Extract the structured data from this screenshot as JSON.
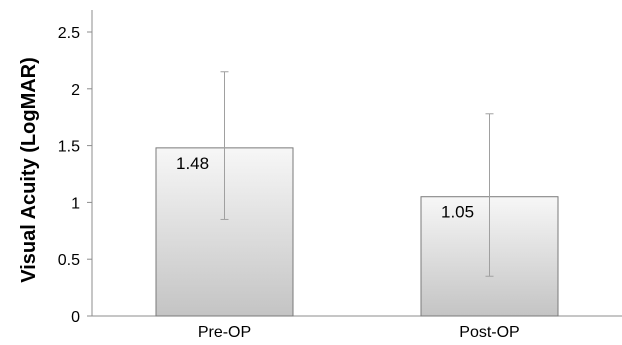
{
  "chart_data": {
    "type": "bar",
    "ylabel": "Visual Acuity (LogMAR)",
    "xlabel": "",
    "ylim": [
      0,
      2.5
    ],
    "yticks": [
      "0",
      "0.5",
      "1",
      "1.5",
      "2",
      "2.5"
    ],
    "grid": false,
    "categories": [
      "Pre-OP",
      "Post-OP"
    ],
    "values": [
      1.48,
      1.05
    ],
    "data_labels": [
      "1.48",
      "1.05"
    ],
    "error_bars": [
      {
        "low": 0.85,
        "high": 2.15
      },
      {
        "low": 0.35,
        "high": 1.78
      }
    ],
    "colors": {
      "bar_top": "#f7f7f7",
      "bar_bottom": "#c4c4c4",
      "bar_border": "#7a7a7a",
      "error_bar": "#a0a0a0",
      "axis": "#8c8c8c"
    }
  }
}
